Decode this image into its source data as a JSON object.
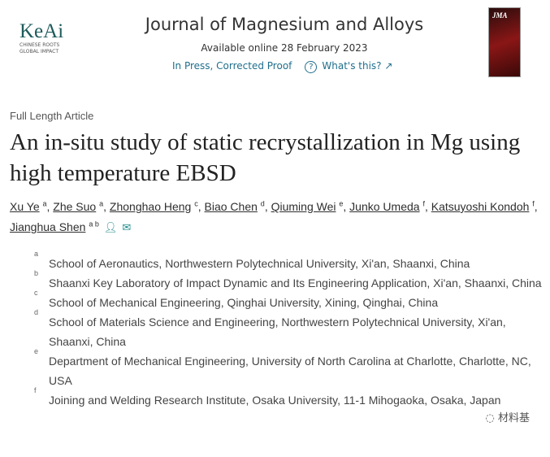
{
  "header": {
    "logo_text": "KeAi",
    "logo_tagline": "CHINESE ROOTS GLOBAL IMPACT",
    "journal": "Journal of Magnesium and Alloys",
    "available": "Available online 28 February 2023",
    "status": "In Press, Corrected Proof",
    "help_link": "What's this? ↗",
    "cover_text": "JMA"
  },
  "article": {
    "type": "Full Length Article",
    "title": "An in-situ study of static recrystallization in Mg using high temperature EBSD"
  },
  "authors": [
    {
      "name": "Xu Ye",
      "sup": "a"
    },
    {
      "name": "Zhe Suo",
      "sup": "a"
    },
    {
      "name": "Zhonghao Heng",
      "sup": "c"
    },
    {
      "name": "Biao Chen",
      "sup": "d"
    },
    {
      "name": "Qiuming Wei",
      "sup": "e"
    },
    {
      "name": "Junko Umeda",
      "sup": "f"
    },
    {
      "name": "Katsuyoshi Kondoh",
      "sup": "f"
    },
    {
      "name": "Jianghua Shen",
      "sup": "a b"
    }
  ],
  "affiliations": [
    {
      "sup": "a",
      "text": "School of Aeronautics, Northwestern Polytechnical University, Xi'an, Shaanxi, China"
    },
    {
      "sup": "b",
      "text": "Shaanxi Key Laboratory of Impact Dynamic and Its Engineering Application, Xi'an, Shaanxi, China"
    },
    {
      "sup": "c",
      "text": "School of Mechanical Engineering, Qinghai University, Xining, Qinghai, China"
    },
    {
      "sup": "d",
      "text": "School of Materials Science and Engineering, Northwestern Polytechnical University, Xi'an, Shaanxi, China"
    },
    {
      "sup": "e",
      "text": "Department of Mechanical Engineering, University of North Carolina at Charlotte, Charlotte, NC, USA"
    },
    {
      "sup": "f",
      "text": "Joining and Welding Research Institute, Osaka University, 11-1 Mihogaoka, Osaka, Japan"
    }
  ],
  "watermark": "材料基"
}
